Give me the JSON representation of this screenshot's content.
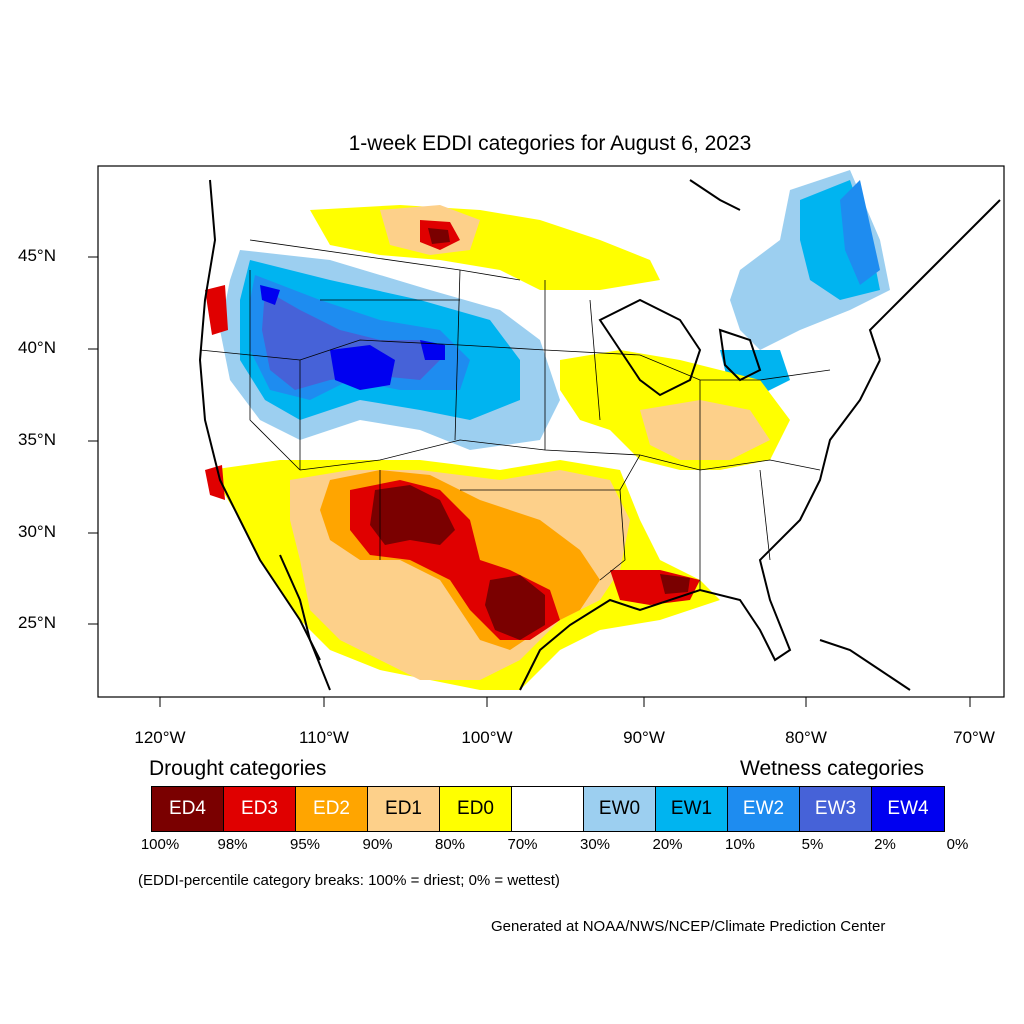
{
  "title": "1-week EDDI categories for August 6, 2023",
  "lat_labels": [
    "45°N",
    "40°N",
    "35°N",
    "30°N",
    "25°N"
  ],
  "lon_labels": [
    "120°W",
    "110°W",
    "100°W",
    "90°W",
    "80°W",
    "70°W"
  ],
  "legend": {
    "drought_heading": "Drought categories",
    "wetness_heading": "Wetness categories",
    "categories": [
      {
        "label": "ED4",
        "color": "#7a0000",
        "text_color": "#ffffff"
      },
      {
        "label": "ED3",
        "color": "#e00000",
        "text_color": "#ffffff"
      },
      {
        "label": "ED2",
        "color": "#ffa500",
        "text_color": "#ffffff"
      },
      {
        "label": "ED1",
        "color": "#fdd08a",
        "text_color": "#000000"
      },
      {
        "label": "ED0",
        "color": "#ffff00",
        "text_color": "#000000"
      },
      {
        "label": "",
        "color": "#ffffff",
        "text_color": "#000000"
      },
      {
        "label": "EW0",
        "color": "#9ccff0",
        "text_color": "#000000"
      },
      {
        "label": "EW1",
        "color": "#00b4f0",
        "text_color": "#000000"
      },
      {
        "label": "EW2",
        "color": "#1e8cf0",
        "text_color": "#ffffff"
      },
      {
        "label": "EW3",
        "color": "#4662d8",
        "text_color": "#ffffff"
      },
      {
        "label": "EW4",
        "color": "#0000f0",
        "text_color": "#ffffff"
      }
    ],
    "breaks": [
      "100%",
      "98%",
      "95%",
      "90%",
      "80%",
      "70%",
      "30%",
      "20%",
      "10%",
      "5%",
      "2%",
      "0%"
    ]
  },
  "note": "(EDDI-percentile category breaks: 100% = driest; 0% = wettest)",
  "credit": "Generated at NOAA/NWS/NCEP/Climate Prediction Center"
}
